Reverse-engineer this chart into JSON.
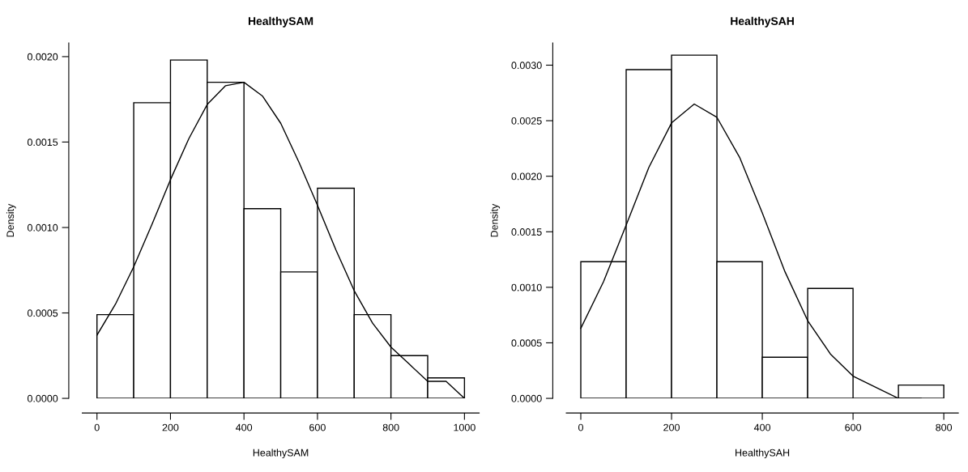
{
  "chart_data": [
    {
      "type": "histogram",
      "title": "HealthySAM",
      "xlabel": "HealthySAM",
      "ylabel": "Density",
      "series": [
        {
          "color": "#000000",
          "bins": [
            0,
            100,
            200,
            300,
            400,
            500,
            600,
            700,
            800,
            900,
            1000
          ],
          "values": [
            0.00049,
            0.00173,
            0.00198,
            0.00185,
            0.00111,
            0.00074,
            0.00123,
            0.00049,
            0.00025,
            0.00012
          ]
        },
        {
          "type": "line",
          "color": "#000000",
          "x": [
            0,
            50,
            100,
            150,
            200,
            250,
            300,
            350,
            400,
            450,
            500,
            550,
            600,
            650,
            700,
            750,
            800,
            850,
            900,
            950,
            1000
          ],
          "values": [
            0.00037,
            0.00055,
            0.00077,
            0.00102,
            0.00128,
            0.00152,
            0.00172,
            0.00183,
            0.00185,
            0.00177,
            0.00161,
            0.00138,
            0.00113,
            0.00087,
            0.00063,
            0.00044,
            0.0003,
            0.0002,
            0.0001,
            0.0001,
            0
          ]
        }
      ],
      "xlim": [
        -40,
        1040
      ],
      "xticks": [
        0,
        200,
        400,
        600,
        800,
        1000
      ],
      "ylim": [
        0,
        0.00208
      ],
      "yticks": [
        {
          "value": 0,
          "label": "0.0000"
        },
        {
          "value": 0.0005,
          "label": "0.0005"
        },
        {
          "value": 0.001,
          "label": "0.0010"
        },
        {
          "value": 0.0015,
          "label": "0.0015"
        },
        {
          "value": 0.002,
          "label": "0.0020"
        }
      ],
      "grid": false,
      "legend": false
    },
    {
      "type": "histogram",
      "title": "HealthySAH",
      "xlabel": "HealthySAH",
      "ylabel": "Density",
      "series": [
        {
          "color": "#000000",
          "bins": [
            0,
            100,
            200,
            300,
            400,
            500,
            600,
            700,
            800
          ],
          "values": [
            0.00123,
            0.00296,
            0.00309,
            0.00123,
            0.00037,
            0.00099,
            0,
            0.00012
          ]
        },
        {
          "type": "line",
          "color": "#000000",
          "x": [
            0,
            50,
            100,
            150,
            200,
            250,
            300,
            350,
            400,
            450,
            500,
            550,
            600,
            650,
            700,
            750
          ],
          "values": [
            0.00063,
            0.00105,
            0.00156,
            0.00208,
            0.00248,
            0.00265,
            0.00253,
            0.00217,
            0.00167,
            0.00114,
            0.0007,
            0.0004,
            0.0002,
            0.0001,
            0,
            0
          ]
        }
      ],
      "xlim": [
        -32,
        832
      ],
      "xticks": [
        0,
        200,
        400,
        600,
        800
      ],
      "ylim": [
        0,
        0.0032
      ],
      "yticks": [
        {
          "value": 0,
          "label": "0.0000"
        },
        {
          "value": 0.0005,
          "label": "0.0005"
        },
        {
          "value": 0.001,
          "label": "0.0010"
        },
        {
          "value": 0.0015,
          "label": "0.0015"
        },
        {
          "value": 0.002,
          "label": "0.0020"
        },
        {
          "value": 0.0025,
          "label": "0.0025"
        },
        {
          "value": 0.003,
          "label": "0.0030"
        }
      ],
      "grid": false,
      "legend": false
    }
  ]
}
